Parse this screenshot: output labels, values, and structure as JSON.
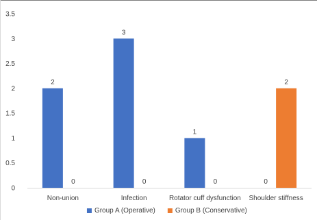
{
  "chart_data": {
    "type": "bar",
    "categories": [
      "Non-union",
      "Infection",
      "Rotator cuff dysfunction",
      "Shoulder stiffness"
    ],
    "series": [
      {
        "name": "Group A (Operative)",
        "values": [
          2,
          3,
          1,
          0
        ],
        "color": "#4472C4"
      },
      {
        "name": "Group B (Conservative)",
        "values": [
          0,
          0,
          0,
          2
        ],
        "color": "#ED7D31"
      }
    ],
    "yticks": [
      "0",
      "0.5",
      "1",
      "1.5",
      "2",
      "2.5",
      "3",
      "3.5"
    ],
    "ylim": [
      0,
      3.5
    ],
    "grid": false,
    "legend": "bottom",
    "data_labels": true
  }
}
